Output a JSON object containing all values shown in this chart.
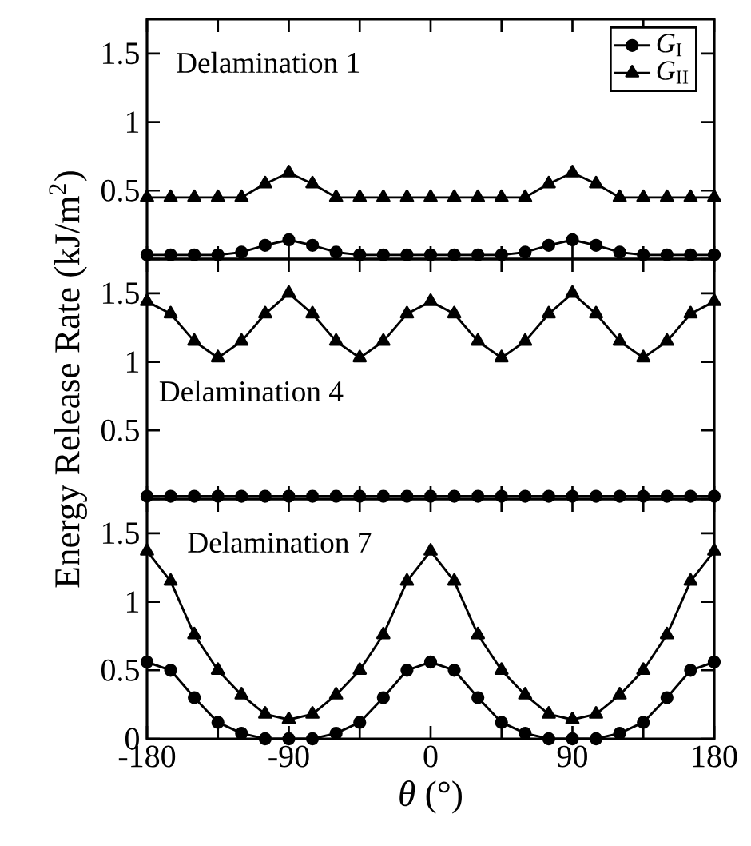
{
  "chart_data": [
    {
      "type": "line",
      "x": [
        -180,
        -165,
        -150,
        -135,
        -120,
        -105,
        -90,
        -75,
        -60,
        -45,
        -30,
        -15,
        0,
        15,
        30,
        45,
        60,
        75,
        90,
        105,
        120,
        135,
        150,
        165,
        180
      ],
      "series": [
        {
          "name": "*G*$_{I}$",
          "color": "#000000",
          "marker": "circle",
          "values": [
            0.03,
            0.03,
            0.03,
            0.03,
            0.05,
            0.1,
            0.14,
            0.1,
            0.05,
            0.03,
            0.03,
            0.03,
            0.03,
            0.03,
            0.03,
            0.03,
            0.05,
            0.1,
            0.14,
            0.1,
            0.05,
            0.03,
            0.03,
            0.03,
            0.03
          ]
        },
        {
          "name": "*G*$_{II}$",
          "color": "#000000",
          "marker": "triangle",
          "values": [
            0.45,
            0.45,
            0.45,
            0.45,
            0.45,
            0.55,
            0.63,
            0.55,
            0.45,
            0.45,
            0.45,
            0.45,
            0.45,
            0.45,
            0.45,
            0.45,
            0.45,
            0.55,
            0.63,
            0.55,
            0.45,
            0.45,
            0.45,
            0.45,
            0.45
          ]
        }
      ],
      "xlim": [
        -180,
        180
      ],
      "ylim": [
        0,
        1.75
      ],
      "xticks": [
        -180,
        {
          "value": -135,
          "label": null
        },
        -90,
        {
          "value": -45,
          "label": null
        },
        0,
        {
          "value": 45,
          "label": null
        },
        90,
        {
          "value": 135,
          "label": null
        },
        180
      ],
      "yticks": [
        {
          "value": 0,
          "label": null
        },
        0.5,
        1,
        1.5
      ],
      "tick_labels": "y",
      "legend": "top right",
      "annotations": [
        "Delamination 1"
      ]
    },
    {
      "type": "line",
      "x": [
        -180,
        -165,
        -150,
        -135,
        -120,
        -105,
        -90,
        -75,
        -60,
        -45,
        -30,
        -15,
        0,
        15,
        30,
        45,
        60,
        75,
        90,
        105,
        120,
        135,
        150,
        165,
        180
      ],
      "series": [
        {
          "color": "#000000",
          "marker": "circle",
          "values": [
            0.02,
            0.02,
            0.02,
            0.02,
            0.02,
            0.02,
            0.02,
            0.02,
            0.02,
            0.02,
            0.02,
            0.02,
            0.02,
            0.02,
            0.02,
            0.02,
            0.02,
            0.02,
            0.02,
            0.02,
            0.02,
            0.02,
            0.02,
            0.02,
            0.02
          ]
        },
        {
          "color": "#000000",
          "marker": "triangle",
          "values": [
            1.44,
            1.35,
            1.15,
            1.03,
            1.15,
            1.35,
            1.5,
            1.35,
            1.15,
            1.03,
            1.15,
            1.35,
            1.44,
            1.35,
            1.15,
            1.03,
            1.15,
            1.35,
            1.5,
            1.35,
            1.15,
            1.03,
            1.15,
            1.35,
            1.44
          ]
        }
      ],
      "xlim": [
        -180,
        180
      ],
      "ylim": [
        0,
        1.75
      ],
      "xticks": [
        -180,
        {
          "value": -135,
          "label": null
        },
        -90,
        {
          "value": -45,
          "label": null
        },
        0,
        {
          "value": 45,
          "label": null
        },
        90,
        {
          "value": 135,
          "label": null
        },
        180
      ],
      "yticks": [
        {
          "value": 0,
          "label": null
        },
        0.5,
        1,
        1.5
      ],
      "tick_labels": "y",
      "ylabel": "Energy Release Rate (kJ/m$^{2}$)",
      "annotations": [
        "Delamination 4"
      ]
    },
    {
      "type": "line",
      "x": [
        -180,
        -165,
        -150,
        -135,
        -120,
        -105,
        -90,
        -75,
        -60,
        -45,
        -30,
        -15,
        0,
        15,
        30,
        45,
        60,
        75,
        90,
        105,
        120,
        135,
        150,
        165,
        180
      ],
      "series": [
        {
          "color": "#000000",
          "marker": "circle",
          "values": [
            0.56,
            0.5,
            0.3,
            0.12,
            0.04,
            0,
            0,
            0,
            0.04,
            0.12,
            0.3,
            0.5,
            0.56,
            0.5,
            0.3,
            0.12,
            0.04,
            0,
            0,
            0,
            0.04,
            0.12,
            0.3,
            0.5,
            0.56
          ]
        },
        {
          "color": "#000000",
          "marker": "triangle",
          "values": [
            1.37,
            1.15,
            0.76,
            0.5,
            0.32,
            0.18,
            0.14,
            0.18,
            0.32,
            0.5,
            0.76,
            1.15,
            1.37,
            1.15,
            0.76,
            0.5,
            0.32,
            0.18,
            0.14,
            0.18,
            0.32,
            0.5,
            0.76,
            1.15,
            1.37
          ]
        }
      ],
      "xlim": [
        -180,
        180
      ],
      "ylim": [
        0,
        1.75
      ],
      "xticks": [
        -180,
        {
          "value": -135,
          "label": null
        },
        -90,
        {
          "value": -45,
          "label": null
        },
        0,
        {
          "value": 45,
          "label": null
        },
        90,
        {
          "value": 135,
          "label": null
        },
        180
      ],
      "yticks": [
        0,
        0.5,
        1,
        1.5
      ],
      "xlabel": "*θ* (°)",
      "annotations": [
        "Delamination 7"
      ]
    }
  ]
}
